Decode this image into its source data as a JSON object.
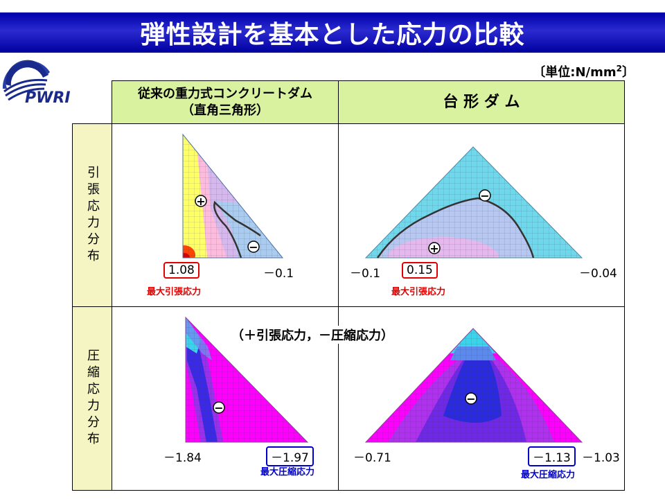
{
  "title": "弾性設計を基本とした応力の比較",
  "unit_text": "〔単位:N/mm",
  "unit_sup": "2",
  "unit_close": "〕",
  "logo_text": "PWRI",
  "columns": {
    "conventional": "従来の重力式コンクリートダム\n（直角三角形）",
    "trapezoid": "台 形 ダ ム"
  },
  "rows": {
    "tensile": "引張応力分布",
    "compressive": "圧縮応力分布"
  },
  "legend": "（＋引張応力，－圧縮応力）",
  "values": {
    "conv_tensile_max": "1.08",
    "conv_tensile_min": "－0.1",
    "trap_tensile_left": "－0.1",
    "trap_tensile_max": "0.15",
    "trap_tensile_right": "－0.04",
    "conv_comp_left": "－1.84",
    "conv_comp_max": "－1.97",
    "trap_comp_left": "－0.71",
    "trap_comp_max": "－1.13",
    "trap_comp_right": "－1.03"
  },
  "labels": {
    "max_tensile": "最大引張応力",
    "max_compressive": "最大圧縮応力"
  },
  "signs": {
    "plus": "+",
    "minus": "−"
  },
  "colors": {
    "title_bg": "#0000aa",
    "header_bg": "#d9f2a0",
    "row_header_bg": "#f5f5c4",
    "tensile_max_box": "#e00000",
    "compressive_max_box": "#0000cc",
    "contour_cyan": "#6fd8ec",
    "contour_magenta": "#ff00ff",
    "contour_blue": "#2a2ae0"
  }
}
